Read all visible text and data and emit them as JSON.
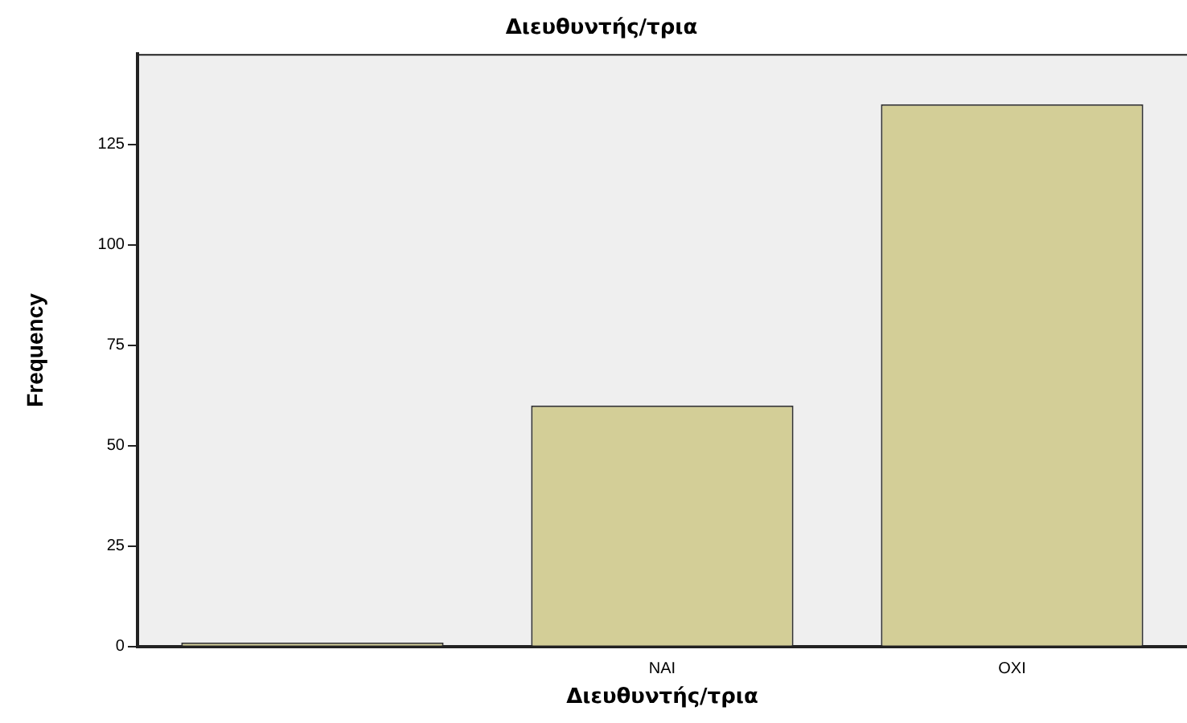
{
  "chart_data": {
    "type": "bar",
    "title": "Διευθυντής/τρια",
    "xlabel": "Διευθυντής/τρια",
    "ylabel": "Frequency",
    "categories": [
      null,
      "NAI",
      "OXI"
    ],
    "values": [
      1,
      60,
      135
    ],
    "color": "#d3ce97",
    "ylim": [
      0,
      147.5
    ],
    "yticks": [
      0,
      25,
      50,
      75,
      100,
      125
    ],
    "grid": false,
    "legend": false
  }
}
